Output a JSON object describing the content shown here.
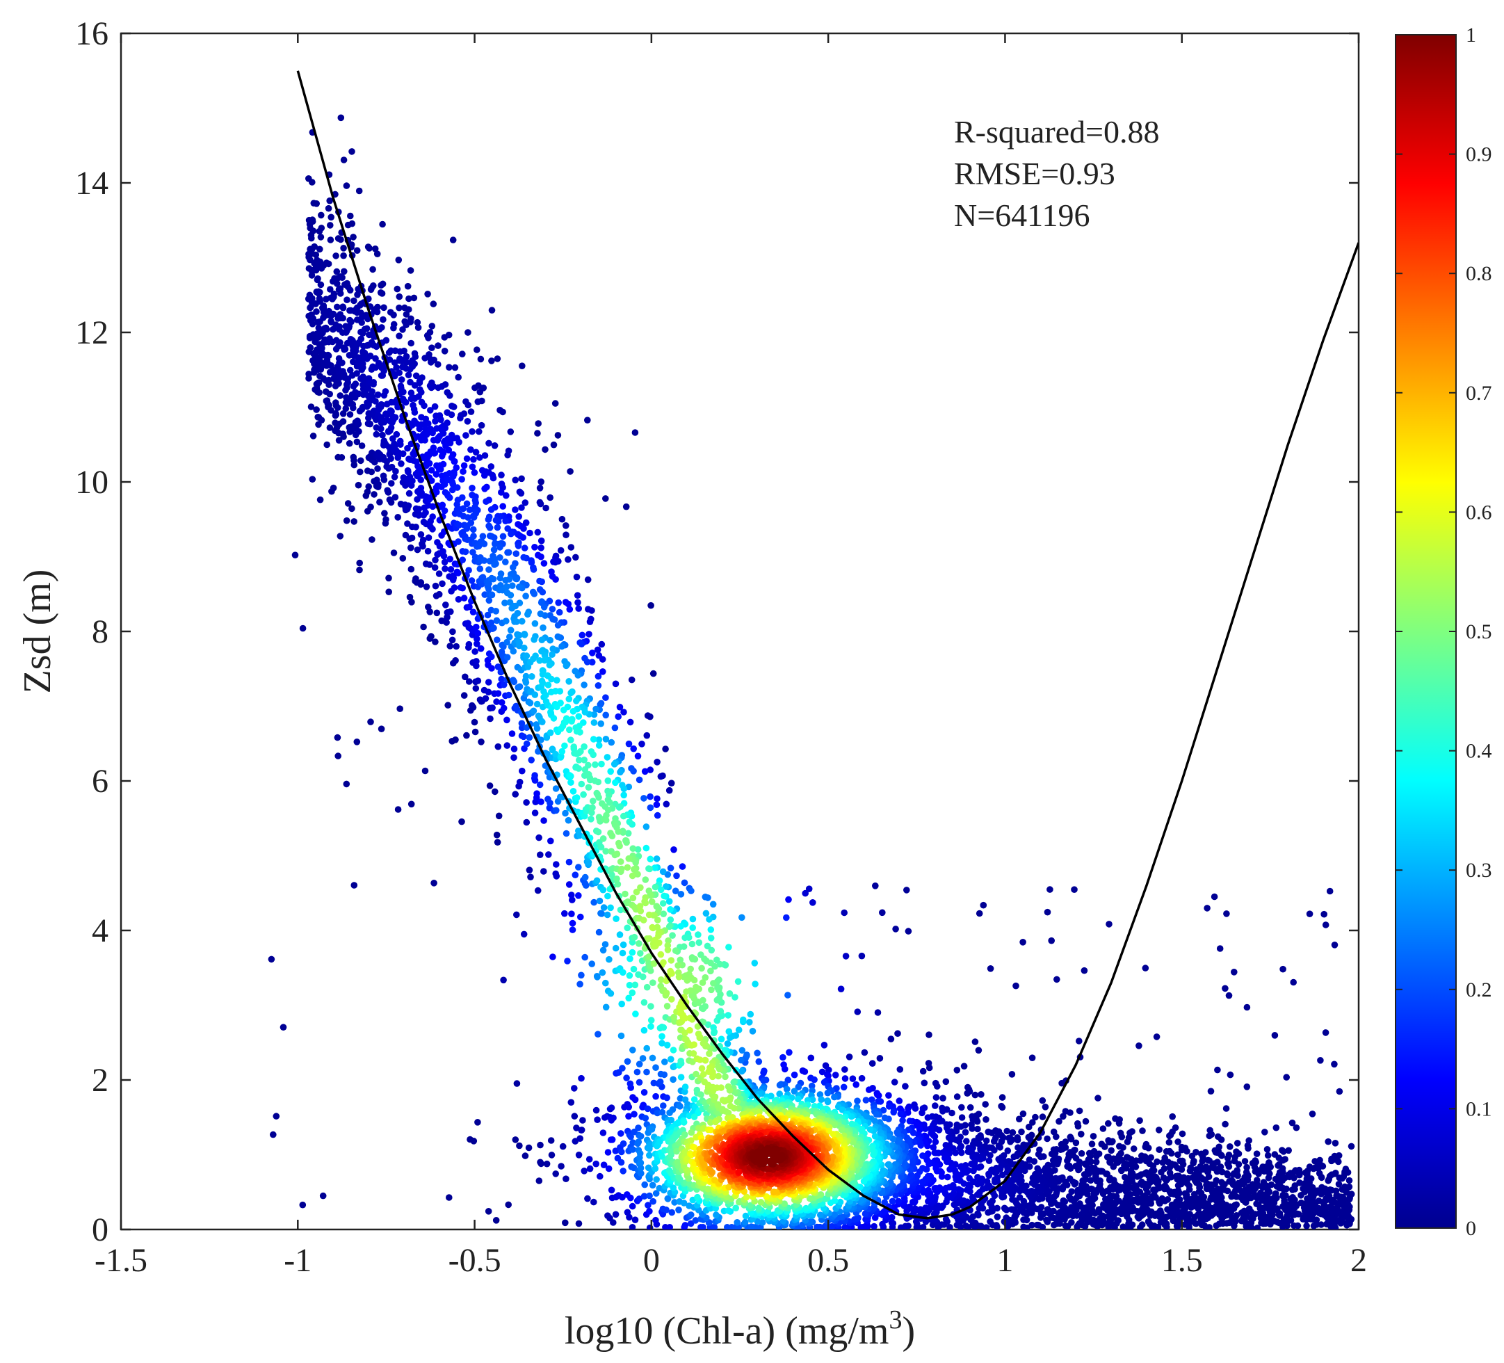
{
  "chart_data": {
    "type": "scatter",
    "subtype": "density-colored scatter with polynomial fit curve",
    "xlabel": "log10 (Chl-a) (mg/m",
    "xlabel_superscript": "3",
    "xlabel_suffix": ")",
    "ylabel": "Zsd (m)",
    "xlim": [
      -1.5,
      2
    ],
    "ylim": [
      0,
      16
    ],
    "x_ticks": [
      -1.5,
      -1,
      -0.5,
      0,
      0.5,
      1,
      1.5,
      2
    ],
    "y_ticks": [
      0,
      2,
      4,
      6,
      8,
      10,
      12,
      14,
      16
    ],
    "x_tick_labels": [
      "-1.5",
      "-1",
      "-0.5",
      "0",
      "0.5",
      "1",
      "1.5",
      "2"
    ],
    "y_tick_labels": [
      "0",
      "2",
      "4",
      "6",
      "8",
      "10",
      "12",
      "14",
      "16"
    ],
    "grid": false,
    "annotations": {
      "r_squared": "R-squared=0.88",
      "rmse": "RMSE=0.93",
      "n": "N=641196",
      "placement": "top-right"
    },
    "fit_curve": {
      "color": "#000000",
      "x": [
        -1.0,
        -0.9,
        -0.8,
        -0.7,
        -0.6,
        -0.5,
        -0.4,
        -0.3,
        -0.2,
        -0.1,
        0.0,
        0.1,
        0.2,
        0.3,
        0.4,
        0.5,
        0.6,
        0.7,
        0.78,
        0.85,
        0.9,
        1.0,
        1.1,
        1.2,
        1.3,
        1.4,
        1.5,
        1.6,
        1.7,
        1.8,
        1.9,
        2.0
      ],
      "y": [
        15.5,
        13.8,
        12.3,
        10.9,
        9.6,
        8.4,
        7.3,
        6.3,
        5.4,
        4.5,
        3.7,
        3.0,
        2.35,
        1.75,
        1.25,
        0.8,
        0.45,
        0.2,
        0.15,
        0.2,
        0.3,
        0.65,
        1.3,
        2.2,
        3.3,
        4.6,
        6.0,
        7.5,
        9.0,
        10.5,
        11.9,
        13.2
      ]
    },
    "density_ridge": {
      "description": "main point cloud follows a band from upper-left to lower-center",
      "x": [
        -0.95,
        -0.8,
        -0.6,
        -0.4,
        -0.2,
        0.0,
        0.15,
        0.3,
        0.45,
        0.6,
        0.8,
        1.0,
        1.2,
        1.4,
        1.6,
        1.8,
        1.98
      ],
      "y": [
        12.2,
        11.4,
        10.0,
        8.2,
        6.2,
        4.0,
        2.2,
        1.1,
        0.95,
        0.85,
        0.75,
        0.65,
        0.55,
        0.5,
        0.45,
        0.4,
        0.35
      ],
      "spread": [
        1.0,
        1.1,
        1.3,
        1.5,
        1.6,
        1.5,
        1.2,
        0.75,
        0.65,
        0.6,
        0.6,
        0.55,
        0.5,
        0.45,
        0.45,
        0.4,
        0.4
      ]
    },
    "peak_density": {
      "x": 0.33,
      "y": 0.98
    },
    "colorbar": {
      "colormap": "jet",
      "min": 0,
      "max": 1,
      "ticks": [
        "0",
        "0.1",
        "0.2",
        "0.3",
        "0.4",
        "0.5",
        "0.6",
        "0.7",
        "0.8",
        "0.9",
        "1"
      ],
      "tick_values": [
        0,
        0.1,
        0.2,
        0.3,
        0.4,
        0.5,
        0.6,
        0.7,
        0.8,
        0.9,
        1
      ],
      "stops": [
        "#00008f",
        "#0000ff",
        "#00ffff",
        "#ffff00",
        "#ff0000",
        "#800000"
      ]
    }
  }
}
